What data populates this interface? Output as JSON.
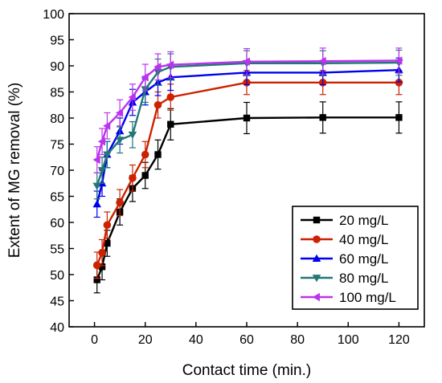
{
  "chart_data": {
    "type": "line",
    "title": "",
    "xlabel": "Contact time (min.)",
    "ylabel": "Extent of MG removal (%)",
    "xlim": [
      -10,
      130
    ],
    "ylim": [
      40,
      100
    ],
    "xticks": [
      0,
      20,
      40,
      60,
      80,
      100,
      120
    ],
    "yticks": [
      40,
      45,
      50,
      55,
      60,
      65,
      70,
      75,
      80,
      85,
      90,
      95,
      100
    ],
    "grid": false,
    "legend_position": "bottom-right",
    "x": [
      1,
      3,
      5,
      10,
      15,
      20,
      25,
      30,
      60,
      90,
      120
    ],
    "series": [
      {
        "name": "20 mg/L",
        "color": "#000000",
        "marker": "square",
        "values": [
          49.0,
          51.5,
          56.0,
          62.0,
          66.5,
          69.0,
          73.0,
          78.8,
          80.0,
          80.1,
          80.1
        ],
        "errors": [
          2.5,
          2.5,
          2.5,
          2.5,
          2.5,
          2.5,
          2.8,
          3.0,
          3.0,
          3.0,
          3.0
        ]
      },
      {
        "name": "40 mg/L",
        "color": "#cc2200",
        "marker": "circle",
        "values": [
          51.8,
          54.2,
          59.5,
          63.8,
          68.5,
          73.0,
          82.5,
          84.0,
          86.8,
          86.8,
          86.8
        ],
        "errors": [
          2.5,
          2.5,
          2.5,
          2.5,
          2.5,
          2.5,
          2.5,
          2.5,
          2.3,
          2.3,
          2.3
        ]
      },
      {
        "name": "60 mg/L",
        "color": "#0000ee",
        "marker": "triangle-up",
        "values": [
          63.5,
          67.5,
          73.0,
          77.5,
          83.0,
          85.0,
          86.8,
          87.8,
          88.7,
          88.7,
          89.2
        ],
        "errors": [
          2.5,
          2.5,
          2.5,
          2.5,
          2.5,
          2.5,
          2.5,
          2.5,
          2.3,
          2.3,
          2.3
        ]
      },
      {
        "name": "80 mg/L",
        "color": "#227777",
        "marker": "triangle-down",
        "values": [
          67.0,
          70.0,
          73.0,
          75.8,
          76.8,
          85.5,
          88.8,
          89.8,
          90.5,
          90.5,
          90.6
        ],
        "errors": [
          2.5,
          2.5,
          2.5,
          2.5,
          2.5,
          2.5,
          2.5,
          2.5,
          2.4,
          2.4,
          2.4
        ]
      },
      {
        "name": "100 mg/L",
        "color": "#bb33ee",
        "marker": "triangle-left",
        "values": [
          72.0,
          75.5,
          78.5,
          81.0,
          84.0,
          87.8,
          89.8,
          90.2,
          90.8,
          90.9,
          91.0
        ],
        "errors": [
          2.5,
          2.5,
          2.5,
          2.5,
          2.5,
          2.5,
          2.5,
          2.5,
          2.5,
          2.5,
          2.4
        ]
      }
    ]
  }
}
